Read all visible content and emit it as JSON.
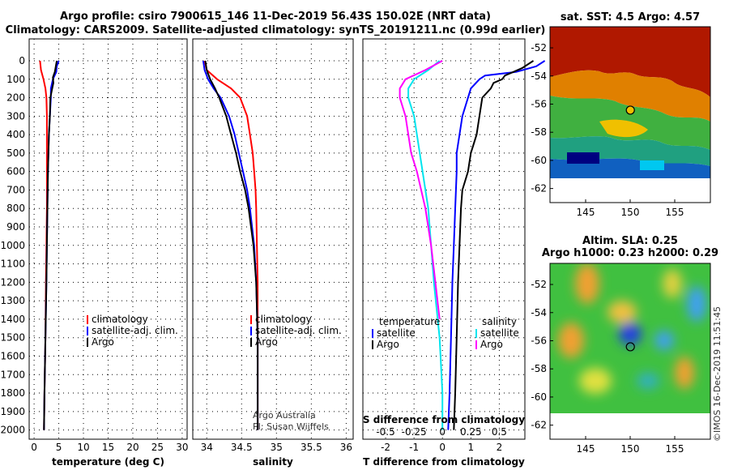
{
  "titles": {
    "line1": "Argo profile: csiro 7900615_146 11-Dec-2019 56.43S 150.02E (NRT data)",
    "line2": "Climatology: CARS2009. Satellite-adjusted climatology: synTS_20191211.nc (0.99d earlier)"
  },
  "footer": {
    "attribution_1": "Argo Australia",
    "attribution_2": "PI: Susan Wijffels",
    "imos_stamp": "©IMOS 16-Dec-2019 11:51:45"
  },
  "colors": {
    "climatology": "#ff0000",
    "satellite": "#0000ff",
    "argo": "#000000",
    "sat_salinity": "#00e5ee",
    "argo_salinity": "#ff00ff"
  },
  "chart_data": [
    {
      "id": "temperature",
      "type": "line",
      "xlabel": "temperature (deg C)",
      "ylabel": "",
      "xlim": [
        -1,
        31
      ],
      "ylim": [
        2050,
        0
      ],
      "xticks": [
        0,
        5,
        10,
        15,
        20,
        25,
        30
      ],
      "yticks": [
        0,
        100,
        200,
        300,
        400,
        500,
        600,
        700,
        800,
        900,
        1000,
        1100,
        1200,
        1300,
        1400,
        1500,
        1600,
        1700,
        1800,
        1900,
        2000
      ],
      "legend": {
        "position": "bottom-right",
        "entries": [
          "climatology",
          "satellite-adj. clim.",
          "Argo"
        ]
      },
      "series": [
        {
          "name": "climatology",
          "color": "#ff0000",
          "depth": [
            0,
            50,
            100,
            150,
            200,
            300,
            400,
            600,
            800,
            1000,
            1200,
            1500,
            1800,
            2000
          ],
          "values": [
            1.2,
            1.4,
            1.9,
            2.3,
            2.5,
            2.6,
            2.6,
            2.6,
            2.6,
            2.5,
            2.4,
            2.3,
            2.1,
            2.0
          ]
        },
        {
          "name": "satellite-adj. clim.",
          "color": "#0000ff",
          "depth": [
            0,
            30,
            60,
            100,
            150,
            200,
            300,
            400,
            600,
            800,
            1000,
            1200,
            1500,
            1800,
            2000
          ],
          "values": [
            5.0,
            4.6,
            4.5,
            3.8,
            3.4,
            3.4,
            3.2,
            3.0,
            2.8,
            2.7,
            2.6,
            2.5,
            2.3,
            2.1,
            2.0
          ]
        },
        {
          "name": "Argo",
          "color": "#000000",
          "depth": [
            0,
            30,
            60,
            90,
            120,
            160,
            200,
            300,
            400,
            600,
            800,
            1000,
            1200,
            1500,
            1800,
            2000
          ],
          "values": [
            4.6,
            4.4,
            4.2,
            3.8,
            3.9,
            3.6,
            3.3,
            3.2,
            3.0,
            2.8,
            2.7,
            2.6,
            2.5,
            2.3,
            2.1,
            2.0
          ]
        }
      ]
    },
    {
      "id": "salinity",
      "type": "line",
      "xlabel": "salinity",
      "ylabel": "",
      "xlim": [
        33.8,
        36.1
      ],
      "ylim": [
        2050,
        0
      ],
      "xticks": [
        34,
        34.5,
        35,
        35.5,
        36
      ],
      "legend": {
        "position": "bottom-right",
        "entries": [
          "climatology",
          "satellite-adj. clim.",
          "Argo"
        ]
      },
      "series": [
        {
          "name": "climatology",
          "color": "#ff0000",
          "depth": [
            0,
            50,
            100,
            150,
            200,
            300,
            400,
            500,
            600,
            700,
            800,
            1000,
            1200,
            1500,
            1800,
            2000
          ],
          "values": [
            33.97,
            34.0,
            34.15,
            34.35,
            34.48,
            34.58,
            34.62,
            34.66,
            34.68,
            34.7,
            34.71,
            34.72,
            34.73,
            34.73,
            34.73,
            34.73
          ]
        },
        {
          "name": "satellite-adj. clim.",
          "color": "#0000ff",
          "depth": [
            0,
            50,
            100,
            150,
            200,
            300,
            400,
            500,
            600,
            700,
            800,
            1000,
            1200,
            1500,
            1800,
            2000
          ],
          "values": [
            33.95,
            33.97,
            34.02,
            34.1,
            34.2,
            34.32,
            34.4,
            34.46,
            34.52,
            34.58,
            34.62,
            34.68,
            34.71,
            34.73,
            34.73,
            34.73
          ]
        },
        {
          "name": "Argo",
          "color": "#000000",
          "depth": [
            0,
            50,
            100,
            150,
            200,
            300,
            400,
            500,
            600,
            700,
            800,
            1000,
            1200,
            1500,
            1800,
            2000
          ],
          "values": [
            33.98,
            34.0,
            34.05,
            34.12,
            34.18,
            34.28,
            34.35,
            34.42,
            34.48,
            34.55,
            34.6,
            34.67,
            34.71,
            34.73,
            34.73,
            34.73
          ]
        }
      ]
    },
    {
      "id": "difference",
      "type": "line",
      "xlabel": "T difference from climatology",
      "ylabel": "",
      "xlim": [
        -2.8,
        2.9
      ],
      "ylim": [
        2050,
        0
      ],
      "xticks": [
        -2,
        -1,
        0,
        1,
        2
      ],
      "secondary_axis": {
        "label": "S difference from climatology",
        "ticks": [
          "-0.5",
          "-0.25",
          "0",
          "0.25",
          "0.5"
        ],
        "tick_positions_T": [
          -2,
          -1,
          0,
          1,
          2
        ]
      },
      "legend_left": {
        "title": "temperature",
        "entries": [
          "satellite",
          "Argo"
        ]
      },
      "legend_right": {
        "title": "salinity",
        "entries": [
          "satellite",
          "Argo"
        ]
      },
      "series": [
        {
          "name": "temperature satellite",
          "color": "#0000ff",
          "depth": [
            0,
            30,
            60,
            80,
            100,
            150,
            200,
            300,
            400,
            500,
            600,
            800,
            1000,
            1200,
            1500,
            1800,
            2000
          ],
          "values": [
            3.6,
            3.3,
            2.6,
            1.5,
            1.3,
            1.0,
            0.9,
            0.7,
            0.6,
            0.5,
            0.5,
            0.45,
            0.4,
            0.35,
            0.3,
            0.25,
            0.2
          ]
        },
        {
          "name": "temperature Argo",
          "color": "#000000",
          "depth": [
            0,
            40,
            60,
            80,
            100,
            120,
            150,
            200,
            300,
            400,
            500,
            600,
            700,
            800,
            1000,
            1200,
            1500,
            1800,
            2000
          ],
          "values": [
            3.2,
            2.8,
            2.5,
            2.2,
            2.1,
            1.8,
            1.7,
            1.4,
            1.3,
            1.2,
            1.0,
            0.9,
            0.7,
            0.65,
            0.6,
            0.55,
            0.5,
            0.45,
            0.4
          ]
        },
        {
          "name": "salinity satellite",
          "color": "#00e5ee",
          "depth": [
            0,
            50,
            100,
            150,
            200,
            300,
            400,
            500,
            600,
            800,
            1000,
            1200,
            1500,
            1800,
            2000
          ],
          "values": [
            -0.1,
            -0.5,
            -1.0,
            -1.2,
            -1.2,
            -1.0,
            -0.9,
            -0.8,
            -0.7,
            -0.5,
            -0.4,
            -0.3,
            -0.1,
            0.0,
            0.0
          ]
        },
        {
          "name": "salinity Argo",
          "color": "#ff00ff",
          "depth": [
            0,
            50,
            100,
            150,
            200,
            300,
            400,
            500,
            600,
            800,
            1000,
            1200,
            1400
          ],
          "values": [
            0.0,
            -0.6,
            -1.3,
            -1.5,
            -1.5,
            -1.3,
            -1.2,
            -1.1,
            -0.9,
            -0.6,
            -0.4,
            -0.25,
            -0.1
          ]
        }
      ]
    },
    {
      "id": "sst_map",
      "type": "heatmap",
      "title": "sat. SST: 4.5 Argo: 4.57",
      "xlim": [
        141,
        159
      ],
      "ylim": [
        -63,
        -50.5
      ],
      "xticks": [
        145,
        150,
        155
      ],
      "yticks": [
        -52,
        -54,
        -56,
        -58,
        -60,
        -62
      ],
      "profile_location": [
        150.02,
        -56.43
      ]
    },
    {
      "id": "sla_map",
      "type": "heatmap",
      "title_line1": "Altim. SLA: 0.25",
      "title_line2": "Argo h1000: 0.23 h2000: 0.29",
      "xlim": [
        141,
        159
      ],
      "ylim": [
        -63,
        -50.5
      ],
      "xticks": [
        145,
        150,
        155
      ],
      "yticks": [
        -52,
        -54,
        -56,
        -58,
        -60,
        -62
      ],
      "profile_location": [
        150.02,
        -56.43
      ]
    }
  ]
}
